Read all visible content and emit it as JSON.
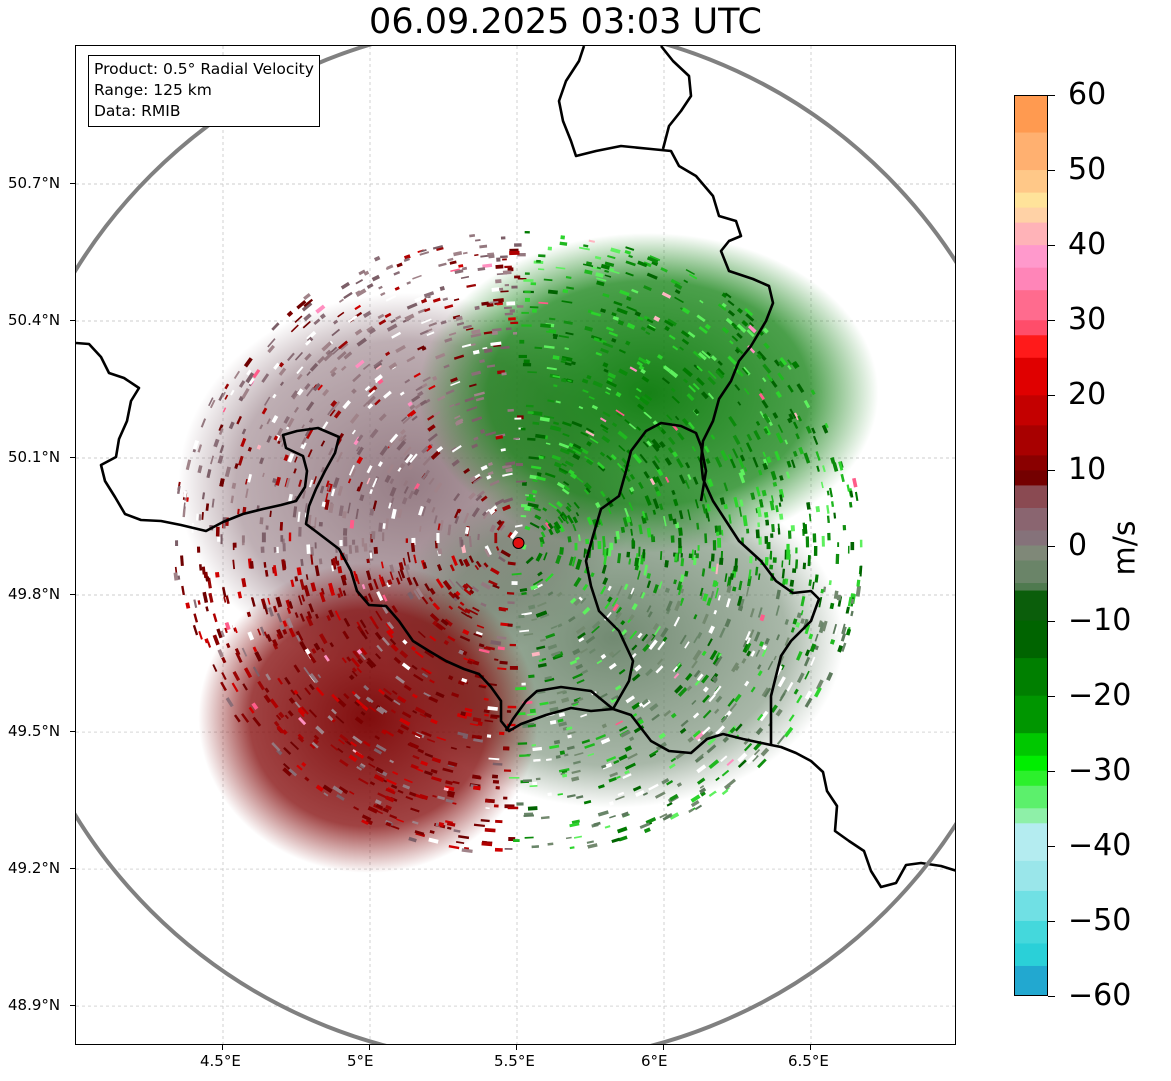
{
  "title": "06.09.2025 03:03 UTC",
  "info_box": {
    "product": "Product: 0.5° Radial Velocity",
    "range": "Range: 125 km",
    "data": "Data: RMIB"
  },
  "map": {
    "x_ticks": [
      "4.5°E",
      "5°E",
      "5.5°E",
      "6°E",
      "6.5°E"
    ],
    "y_ticks": [
      "50.7°N",
      "50.4°N",
      "50.1°N",
      "49.8°N",
      "49.5°N",
      "49.2°N",
      "48.9°N"
    ],
    "lon_range": [
      4.0,
      7.0
    ],
    "lat_range": [
      48.8,
      51.0
    ],
    "radar_site": {
      "lon": 5.505,
      "lat": 49.914
    },
    "range_ring_color": "#808080",
    "border_color": "#000000",
    "site_marker_color": "#e01010"
  },
  "colorbar": {
    "unit": "m/s",
    "min": -60,
    "max": 60,
    "tick_labels": [
      "60",
      "50",
      "40",
      "30",
      "20",
      "10",
      "0",
      "−10",
      "−20",
      "−30",
      "−40",
      "−50",
      "−60"
    ],
    "tick_values": [
      60,
      50,
      40,
      30,
      20,
      10,
      0,
      -10,
      -20,
      -30,
      -40,
      -50,
      -60
    ]
  }
}
